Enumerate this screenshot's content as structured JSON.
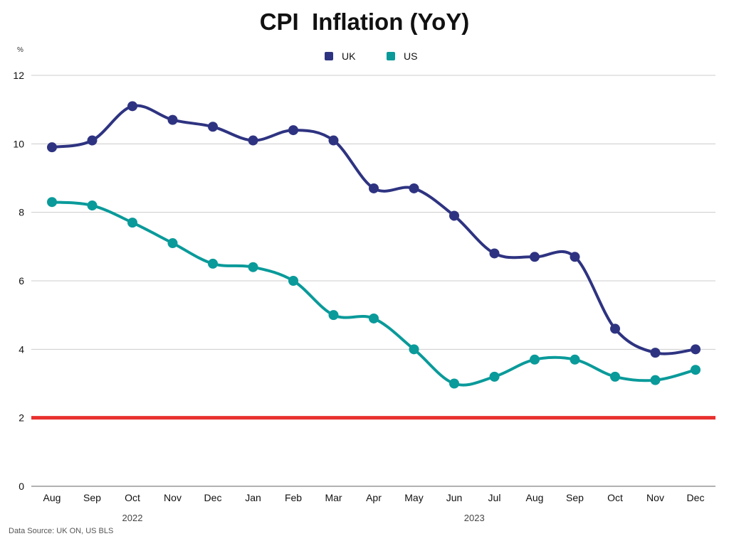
{
  "chart_data": {
    "type": "line",
    "title": "CPI  Inflation (YoY)",
    "ylabel": "%",
    "xlabel": "",
    "ylim": [
      0,
      12
    ],
    "yticks": [
      0,
      2,
      4,
      6,
      8,
      10,
      12
    ],
    "grid": true,
    "legend_position": "top-center",
    "categories": [
      "Aug",
      "Sep",
      "Oct",
      "Nov",
      "Dec",
      "Jan",
      "Feb",
      "Mar",
      "Apr",
      "May",
      "Jun",
      "Jul",
      "Aug",
      "Sep",
      "Oct",
      "Nov",
      "Dec"
    ],
    "year_groups": [
      {
        "label": "2022",
        "start": 0,
        "end": 4
      },
      {
        "label": "2023",
        "start": 5,
        "end": 16
      }
    ],
    "series": [
      {
        "name": "UK",
        "color": "#2e3381",
        "values": [
          9.9,
          10.1,
          11.1,
          10.7,
          10.5,
          10.1,
          10.4,
          10.1,
          8.7,
          8.7,
          7.9,
          6.8,
          6.7,
          6.7,
          4.6,
          3.9,
          4.0
        ]
      },
      {
        "name": "US",
        "color": "#0a9a9a",
        "values": [
          8.3,
          8.2,
          7.7,
          7.1,
          6.5,
          6.4,
          6.0,
          5.0,
          4.9,
          4.0,
          3.0,
          3.2,
          3.7,
          3.7,
          3.2,
          3.1,
          3.4
        ]
      }
    ],
    "reference_line": {
      "value": 2,
      "color": "#e8302f"
    },
    "source": "Data Source: UK ON, US BLS"
  }
}
